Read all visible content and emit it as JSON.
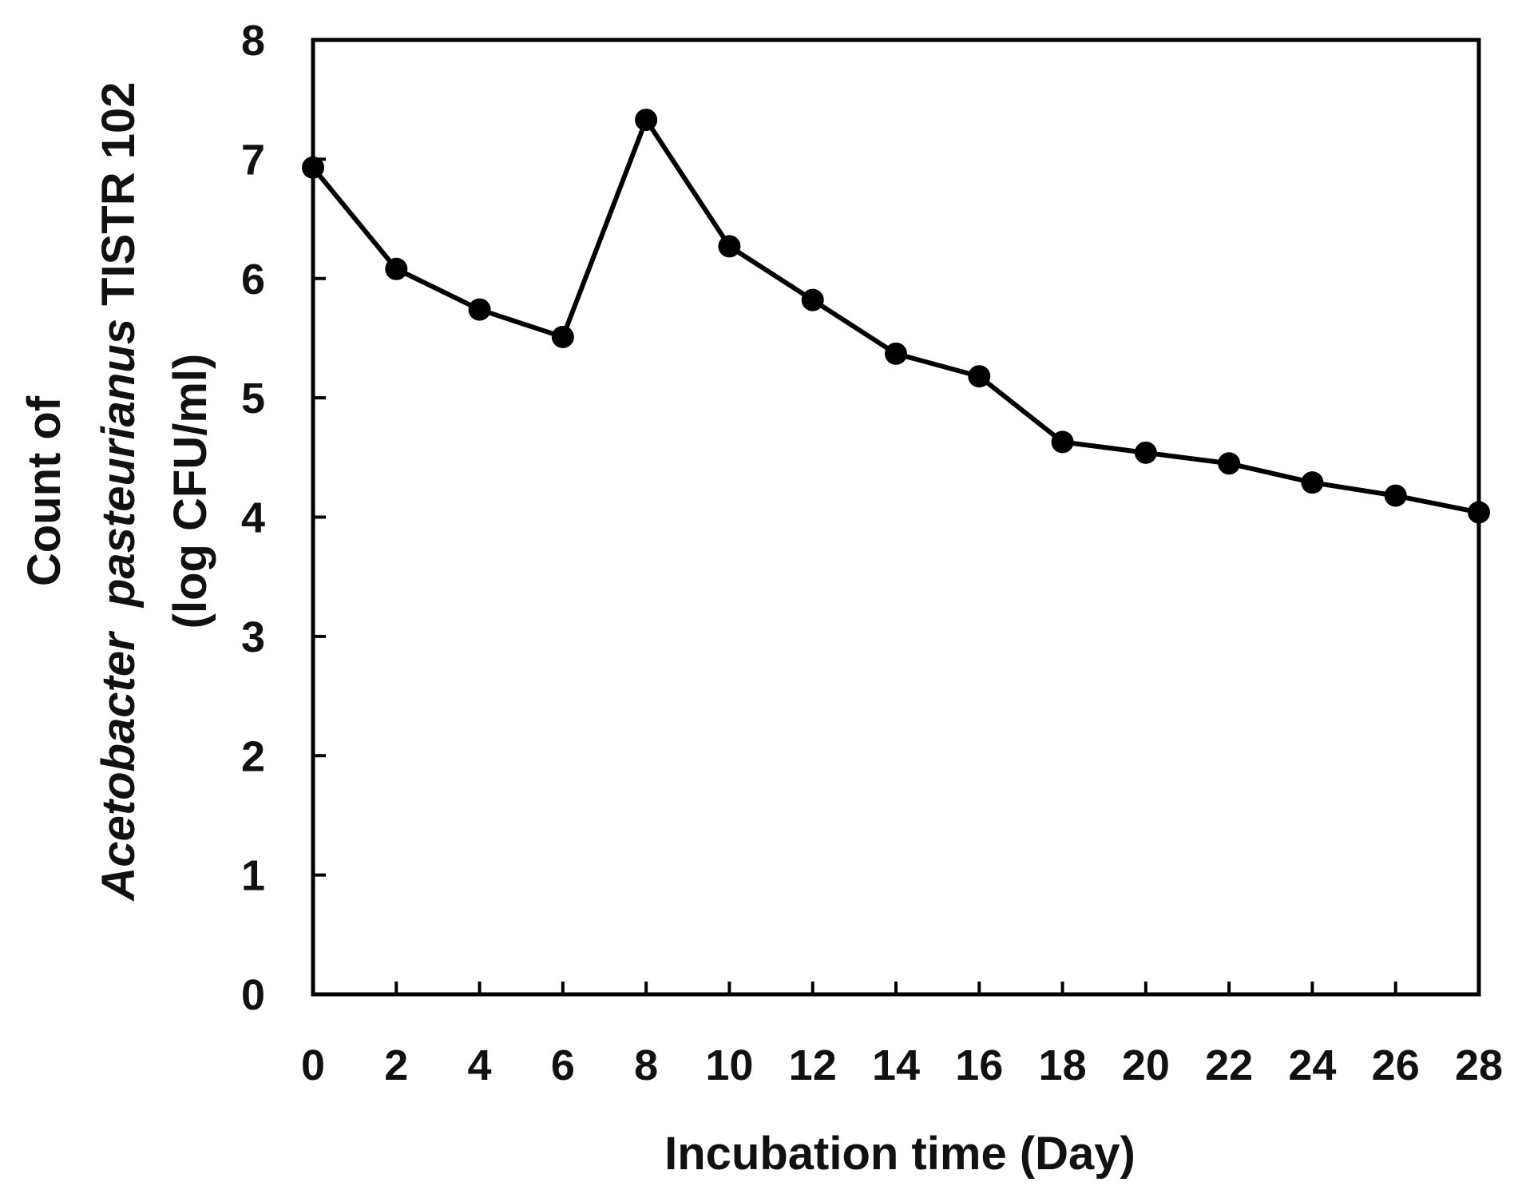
{
  "chart_data": {
    "type": "line",
    "title": "",
    "xlabel": "Incubation time (Day)",
    "ylabel": {
      "line1": "Count of",
      "line2_italic": "Acetobacter  pasteurianus",
      "line2_rest": " TISTR 102",
      "line3": "(log CFU/ml)"
    },
    "xlim": [
      0,
      28
    ],
    "ylim": [
      0,
      8
    ],
    "x_ticks": [
      0,
      2,
      4,
      6,
      8,
      10,
      12,
      14,
      16,
      18,
      20,
      22,
      24,
      26,
      28
    ],
    "y_ticks": [
      0,
      1,
      2,
      3,
      4,
      5,
      6,
      7,
      8
    ],
    "grid": false,
    "series": [
      {
        "name": "Acetobacter pasteurianus TISTR 102",
        "color": "#000000",
        "marker": "circle",
        "x": [
          0,
          2,
          4,
          6,
          8,
          10,
          12,
          14,
          16,
          18,
          20,
          22,
          24,
          26,
          28
        ],
        "y": [
          6.93,
          6.08,
          5.74,
          5.51,
          7.33,
          6.27,
          5.82,
          5.37,
          5.18,
          4.63,
          4.54,
          4.45,
          4.29,
          4.18,
          4.04
        ]
      }
    ]
  }
}
